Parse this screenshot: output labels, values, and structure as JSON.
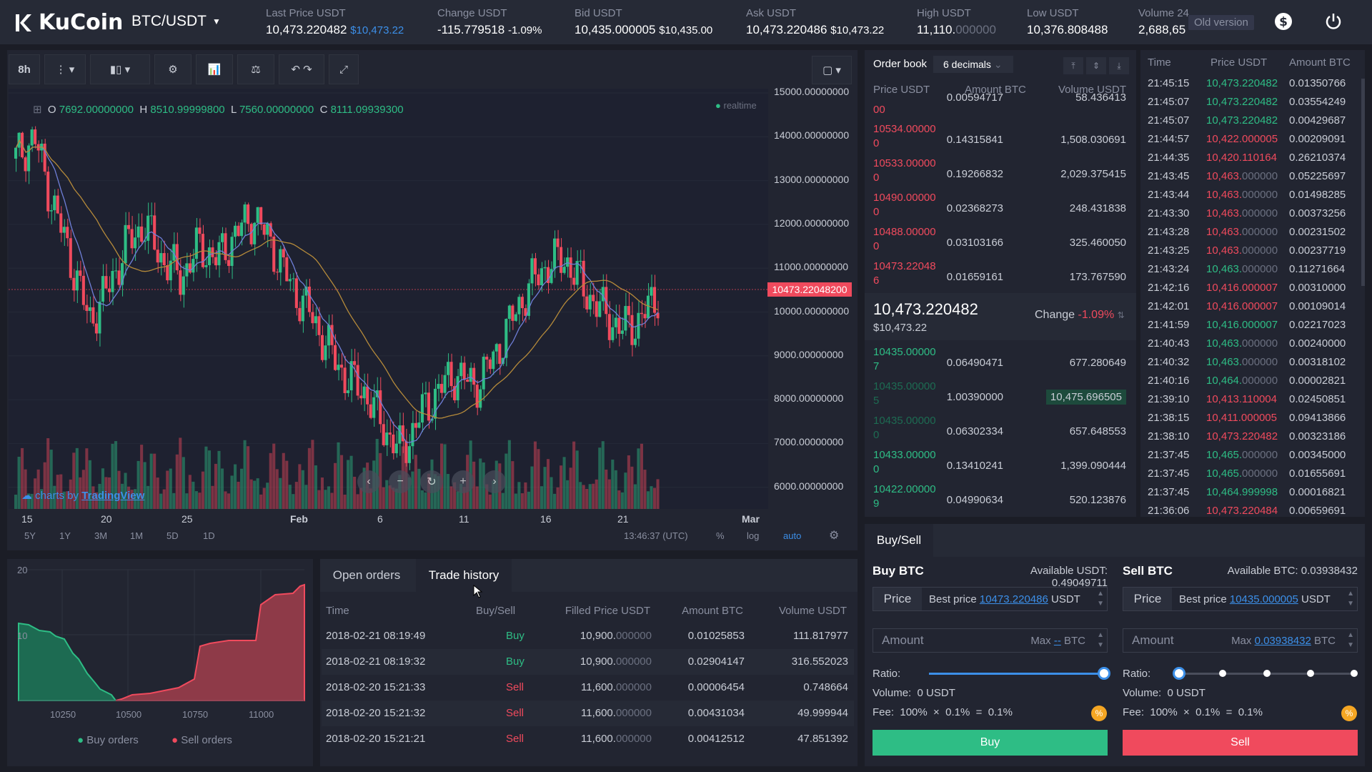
{
  "header": {
    "brand": "KuCoin",
    "pair": "BTC/USDT",
    "old_version": "Old version",
    "stats": [
      {
        "label": "Last Price USDT",
        "value": "10,473.220482",
        "sub": "$10,473.22"
      },
      {
        "label": "Change USDT",
        "value": "-115.779518",
        "sub": "-1.09%"
      },
      {
        "label": "Bid USDT",
        "value": "10,435.000005",
        "sub": "$10,435.00"
      },
      {
        "label": "Ask USDT",
        "value": "10,473.220486",
        "sub": "$10,473.22"
      },
      {
        "label": "High USDT",
        "value": "11,110.",
        "sub": "000000"
      },
      {
        "label": "Low USDT",
        "value": "10,376.808488",
        "sub": ""
      },
      {
        "label": "Volume 24",
        "value": "2,688,65",
        "sub": ""
      }
    ]
  },
  "toolbar": {
    "interval": "8h"
  },
  "chart": {
    "ohlc": {
      "o": "7692.00000000",
      "h": "8510.99999800",
      "l": "7560.00000000",
      "c": "8111.09939300"
    },
    "realtime": "realtime",
    "attribution": "charts by",
    "attribution_link": "TradingView",
    "price_tag": "10473.22048200",
    "y_ticks": [
      "15000.00000000",
      "14000.00000000",
      "13000.00000000",
      "12000.00000000",
      "11000.00000000",
      "10000.00000000",
      "9000.00000000",
      "8000.00000000",
      "7000.00000000",
      "6000.00000000"
    ],
    "x_ticks": [
      "15",
      "20",
      "25",
      "Feb",
      "6",
      "11",
      "16",
      "21",
      "Mar"
    ],
    "ranges": [
      "5Y",
      "1Y",
      "3M",
      "1M",
      "5D",
      "1D"
    ],
    "clock": "13:46:37 (UTC)",
    "pct": "%",
    "log": "log",
    "auto": "auto"
  },
  "depth": {
    "y_ticks": [
      "20",
      "10"
    ],
    "x_ticks": [
      "10250",
      "10500",
      "10750",
      "11000"
    ],
    "buy_label": "Buy orders",
    "sell_label": "Sell orders"
  },
  "orders": {
    "tabs": [
      "Open orders",
      "Trade history"
    ],
    "columns": [
      "Time",
      "Buy/Sell",
      "Filled Price USDT",
      "Amount BTC",
      "Volume USDT"
    ],
    "rows": [
      {
        "time": "2018-02-21 08:19:49",
        "side": "Buy",
        "price": "10,900.",
        "price_dim": "000000",
        "amount": "0.01025853",
        "volume": "111.817977"
      },
      {
        "time": "2018-02-21 08:19:32",
        "side": "Buy",
        "price": "10,900.",
        "price_dim": "000000",
        "amount": "0.02904147",
        "volume": "316.552023"
      },
      {
        "time": "2018-02-20 15:21:33",
        "side": "Sell",
        "price": "11,600.",
        "price_dim": "000000",
        "amount": "0.00006454",
        "volume": "0.748664"
      },
      {
        "time": "2018-02-20 15:21:32",
        "side": "Sell",
        "price": "11,600.",
        "price_dim": "000000",
        "amount": "0.00431034",
        "volume": "49.999944"
      },
      {
        "time": "2018-02-20 15:21:21",
        "side": "Sell",
        "price": "11,600.",
        "price_dim": "000000",
        "amount": "0.00412512",
        "volume": "47.851392"
      }
    ]
  },
  "orderbook": {
    "title": "Order book",
    "decimals": "6 decimals",
    "columns": [
      "Price USDT",
      "Amount BTC",
      "Volume USDT"
    ],
    "asks": [
      {
        "price": "00",
        "amount": "0.00594717",
        "volume": "58.436413"
      },
      {
        "price": "10534.000000",
        "amount": "0.14315841",
        "volume": "1,508.030691"
      },
      {
        "price": "10533.000000",
        "amount": "0.19266832",
        "volume": "2,029.375415"
      },
      {
        "price": "10490.000000",
        "amount": "0.02368273",
        "volume": "248.431838"
      },
      {
        "price": "10488.000000",
        "amount": "0.03103166",
        "volume": "325.460050"
      },
      {
        "price": "10473.220486",
        "amount": "0.01659161",
        "volume": "173.767590"
      }
    ],
    "last": "10,473.220482",
    "last_usd": "$10,473.22",
    "change_label": "Change",
    "change": "-1.09%",
    "bids": [
      {
        "price": "10435.000007",
        "amount": "0.06490471",
        "volume": "677.280649"
      },
      {
        "price": "10435.000005",
        "amount": "1.00390000",
        "volume": "10,475.696505"
      },
      {
        "price": "10435.000000",
        "amount": "0.06302334",
        "volume": "657.648553"
      },
      {
        "price": "10433.000000",
        "amount": "0.13410241",
        "volume": "1,399.090444"
      },
      {
        "price": "10422.000009",
        "amount": "0.04990634",
        "volume": "520.123876"
      }
    ]
  },
  "trades": {
    "columns": [
      "Time",
      "Price USDT",
      "Amount BTC"
    ],
    "rows": [
      {
        "t": "21:45:15",
        "p": "10,473.220482",
        "d": "",
        "a": "0.01350766",
        "side": "up"
      },
      {
        "t": "21:45:07",
        "p": "10,473.220482",
        "d": "",
        "a": "0.03554249",
        "side": "up"
      },
      {
        "t": "21:45:07",
        "p": "10,473.220482",
        "d": "",
        "a": "0.00429687",
        "side": "up"
      },
      {
        "t": "21:44:57",
        "p": "10,422.000005",
        "d": "",
        "a": "0.00209091",
        "side": "dn"
      },
      {
        "t": "21:44:35",
        "p": "10,420.110164",
        "d": "",
        "a": "0.26210374",
        "side": "dn"
      },
      {
        "t": "21:43:45",
        "p": "10,463.",
        "d": "000000",
        "a": "0.05225697",
        "side": "dn"
      },
      {
        "t": "21:43:44",
        "p": "10,463.",
        "d": "000000",
        "a": "0.01498285",
        "side": "dn"
      },
      {
        "t": "21:43:30",
        "p": "10,463.",
        "d": "000000",
        "a": "0.00373256",
        "side": "dn"
      },
      {
        "t": "21:43:28",
        "p": "10,463.",
        "d": "000000",
        "a": "0.00231502",
        "side": "dn"
      },
      {
        "t": "21:43:25",
        "p": "10,463.",
        "d": "000000",
        "a": "0.00237719",
        "side": "dn"
      },
      {
        "t": "21:43:24",
        "p": "10,463.",
        "d": "000000",
        "a": "0.11271664",
        "side": "up"
      },
      {
        "t": "21:42:16",
        "p": "10,416.000007",
        "d": "",
        "a": "0.00310000",
        "side": "dn"
      },
      {
        "t": "21:42:01",
        "p": "10,416.000007",
        "d": "",
        "a": "0.00109014",
        "side": "dn"
      },
      {
        "t": "21:41:59",
        "p": "10,416.000007",
        "d": "",
        "a": "0.02217023",
        "side": "up"
      },
      {
        "t": "21:40:43",
        "p": "10,463.",
        "d": "000000",
        "a": "0.00240000",
        "side": "up"
      },
      {
        "t": "21:40:32",
        "p": "10,463.",
        "d": "000000",
        "a": "0.00318102",
        "side": "up"
      },
      {
        "t": "21:40:16",
        "p": "10,464.",
        "d": "000000",
        "a": "0.00002821",
        "side": "up"
      },
      {
        "t": "21:39:10",
        "p": "10,413.110004",
        "d": "",
        "a": "0.02450851",
        "side": "dn"
      },
      {
        "t": "21:38:15",
        "p": "10,411.000005",
        "d": "",
        "a": "0.09413866",
        "side": "dn"
      },
      {
        "t": "21:38:10",
        "p": "10,473.220482",
        "d": "",
        "a": "0.00323186",
        "side": "dn"
      },
      {
        "t": "21:37:45",
        "p": "10,465.",
        "d": "000000",
        "a": "0.00345000",
        "side": "up"
      },
      {
        "t": "21:37:45",
        "p": "10,465.",
        "d": "000000",
        "a": "0.01655691",
        "side": "up"
      },
      {
        "t": "21:37:45",
        "p": "10,464.999998",
        "d": "",
        "a": "0.00016821",
        "side": "up"
      },
      {
        "t": "21:36:06",
        "p": "10,473.220484",
        "d": "",
        "a": "0.00659691",
        "side": "dn"
      }
    ]
  },
  "trade": {
    "tab": "Buy/Sell",
    "buy": {
      "title": "Buy BTC",
      "available": "Available USDT: 0.49049711",
      "price_label": "Price",
      "best_label": "Best price",
      "best": "10473.220486",
      "unit": "USDT",
      "amount_label": "Amount",
      "max_label": "Max",
      "max": "--",
      "max_unit": "BTC",
      "ratio_label": "Ratio:",
      "ratio": 1.0,
      "volume": "Volume:  0 USDT",
      "fee": "Fee:  100%  ×  0.1%  =  0.1%",
      "button": "Buy"
    },
    "sell": {
      "title": "Sell BTC",
      "available": "Available BTC: 0.03938432",
      "price_label": "Price",
      "best_label": "Best price",
      "best": "10435.000005",
      "unit": "USDT",
      "amount_label": "Amount",
      "max_label": "Max",
      "max": "0.03938432",
      "max_unit": "BTC",
      "ratio_label": "Ratio:",
      "ratio": 0.0,
      "volume": "Volume:  0 USDT",
      "fee": "Fee:  100%  ×  0.1%  =  0.1%",
      "button": "Sell"
    }
  },
  "colors": {
    "up": "#2ebd85",
    "down": "#f04a5d",
    "accent": "#3c8fe8",
    "bg": "#1b1d26",
    "panel": "#222531"
  },
  "icons": [
    "kucoin-logo-icon",
    "dollar-icon",
    "power-icon",
    "settings-icon",
    "undo-icon",
    "redo-icon",
    "fullscreen-icon"
  ]
}
